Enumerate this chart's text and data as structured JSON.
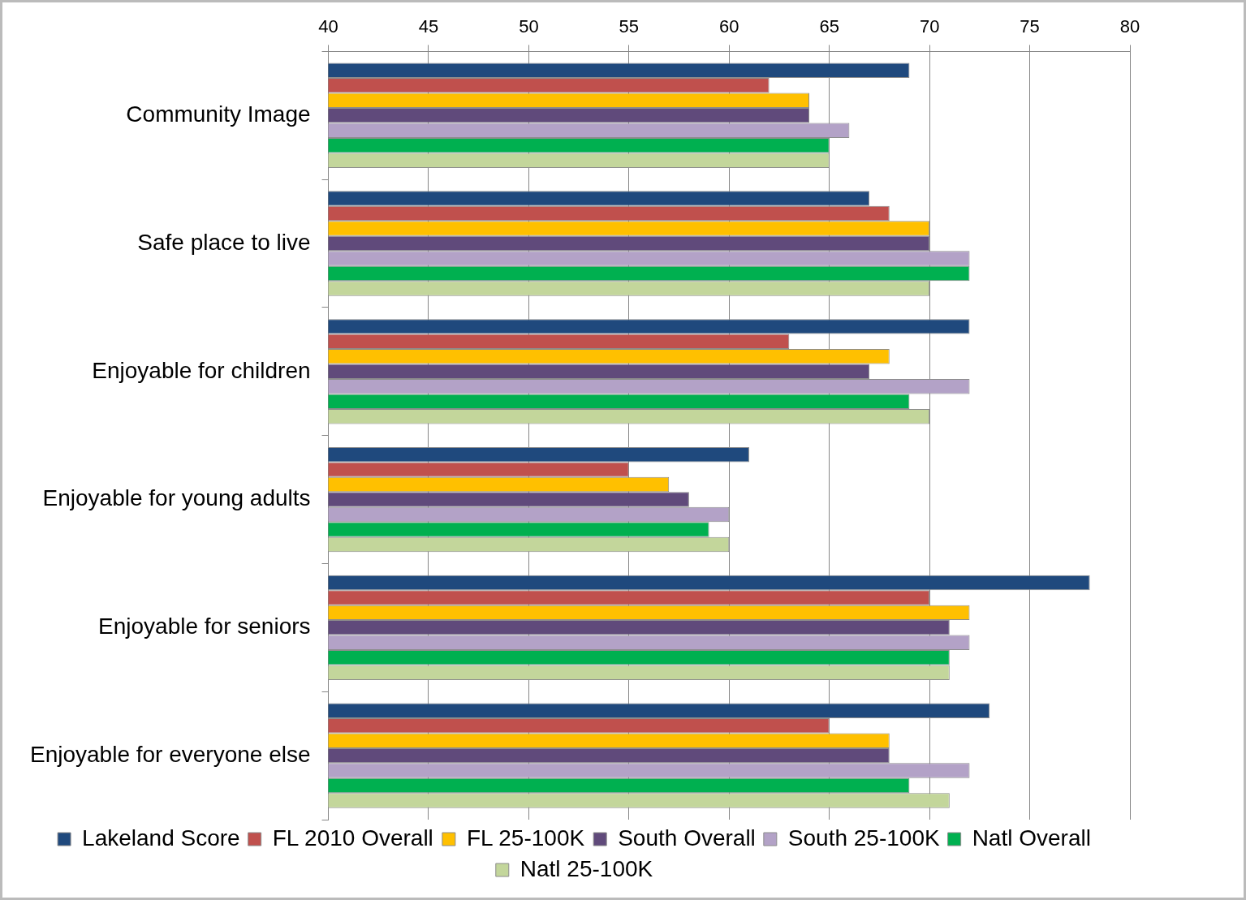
{
  "chart_data": {
    "type": "bar",
    "orientation": "horizontal",
    "categories": [
      "Community Image",
      "Safe place to live",
      "Enjoyable for children",
      "Enjoyable for young adults",
      "Enjoyable for seniors",
      "Enjoyable for everyone else"
    ],
    "series": [
      {
        "name": "Lakeland Score",
        "color": "#1f497d",
        "values": [
          69,
          67,
          72,
          61,
          78,
          73
        ]
      },
      {
        "name": "FL 2010 Overall",
        "color": "#c0504d",
        "values": [
          62,
          68,
          63,
          55,
          70,
          65
        ]
      },
      {
        "name": "FL 25-100K",
        "color": "#ffc000",
        "values": [
          64,
          70,
          68,
          57,
          72,
          68
        ]
      },
      {
        "name": "South Overall",
        "color": "#604a7b",
        "values": [
          64,
          70,
          67,
          58,
          71,
          68
        ]
      },
      {
        "name": "South 25-100K",
        "color": "#b3a2c7",
        "values": [
          66,
          72,
          72,
          60,
          72,
          72
        ]
      },
      {
        "name": "Natl Overall",
        "color": "#00b050",
        "values": [
          65,
          72,
          69,
          59,
          71,
          69
        ]
      },
      {
        "name": "Natl 25-100K",
        "color": "#c3d69b",
        "values": [
          65,
          70,
          70,
          60,
          71,
          71
        ]
      }
    ],
    "xlim": [
      40,
      80
    ],
    "xticks": [
      40,
      45,
      50,
      55,
      60,
      65,
      70,
      75,
      80
    ],
    "grid": "x",
    "legend": "bottom"
  }
}
